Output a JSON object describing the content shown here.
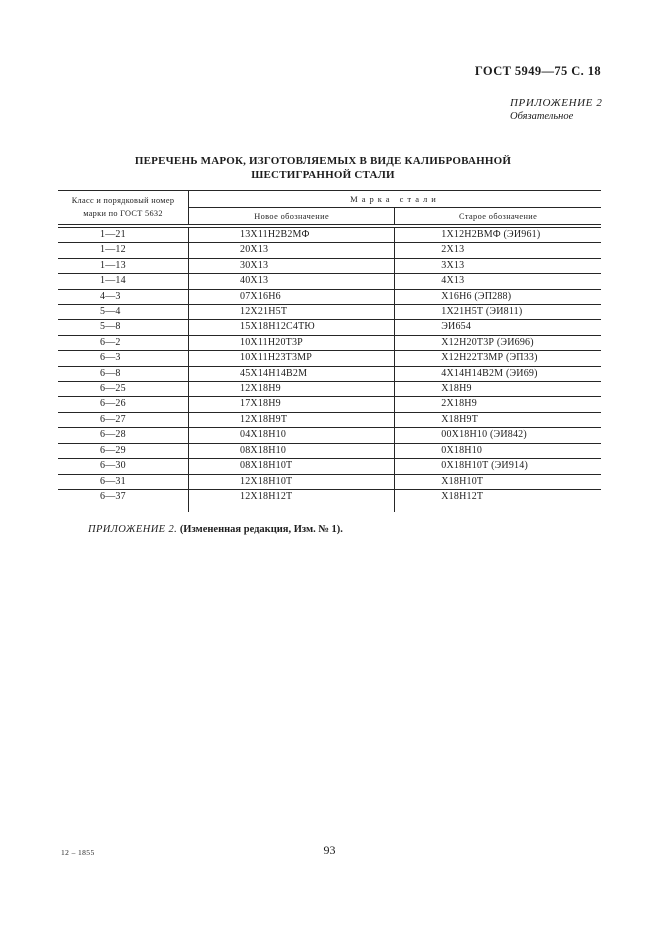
{
  "page": {
    "doc_ref": "ГОСТ 5949—75 С. 18",
    "appendix": {
      "label": "ПРИЛОЖЕНИЕ 2",
      "type": "Обязательное"
    },
    "title_line1": "ПЕРЕЧЕНЬ МАРОК, ИЗГОТОВЛЯЕМЫХ В ВИДЕ КАЛИБРОВАННОЙ",
    "title_line2": "ШЕСТИГРАННОЙ СТАЛИ",
    "footnote": {
      "ref": "ПРИЛОЖЕНИЕ 2.",
      "note": "(Измененная редакция, Изм. № 1)."
    },
    "footer_code": "12 – 1855",
    "page_number": "93"
  },
  "table": {
    "col_class_header_line1": "Класс и порядковый номер",
    "col_class_header_line2": "марки по ГОСТ 5632",
    "group_header": "Марка стали",
    "sub_headers": {
      "new": "Новое обозначение",
      "old": "Старое обозначение"
    },
    "column_names": [
      "class-and-number",
      "new-designation",
      "old-designation"
    ],
    "rows": [
      [
        "1—21",
        "13Х11Н2В2МФ",
        "1Х12Н2ВМФ (ЭИ961)"
      ],
      [
        "1—12",
        "20Х13",
        "2Х13"
      ],
      [
        "1—13",
        "30Х13",
        "3Х13"
      ],
      [
        "1—14",
        "40Х13",
        "4Х13"
      ],
      [
        "4—3",
        "07Х16Н6",
        "Х16Н6 (ЭП288)"
      ],
      [
        "5—4",
        "12Х21Н5Т",
        "1Х21Н5Т (ЭИ811)"
      ],
      [
        "5—8",
        "15Х18Н12С4ТЮ",
        "ЭИ654"
      ],
      [
        "6—2",
        "10Х11Н20Т3Р",
        "Х12Н20Т3Р (ЭИ696)"
      ],
      [
        "6—3",
        "10Х11Н23Т3МР",
        "Х12Н22Т3МР (ЭП33)"
      ],
      [
        "6—8",
        "45Х14Н14В2М",
        "4Х14Н14В2М (ЭИ69)"
      ],
      [
        "6—25",
        "12Х18Н9",
        "Х18Н9"
      ],
      [
        "6—26",
        "17Х18Н9",
        "2Х18Н9"
      ],
      [
        "6—27",
        "12Х18Н9Т",
        "Х18Н9Т"
      ],
      [
        "6—28",
        "04Х18Н10",
        "00Х18Н10 (ЭИ842)"
      ],
      [
        "6—29",
        "08Х18Н10",
        "0Х18Н10"
      ],
      [
        "6—30",
        "08Х18Н10Т",
        "0Х18Н10Т (ЭИ914)"
      ],
      [
        "6—31",
        "12Х18Н10Т",
        "Х18Н10Т"
      ],
      [
        "6—37",
        "12Х18Н12Т",
        "Х18Н12Т"
      ]
    ]
  }
}
